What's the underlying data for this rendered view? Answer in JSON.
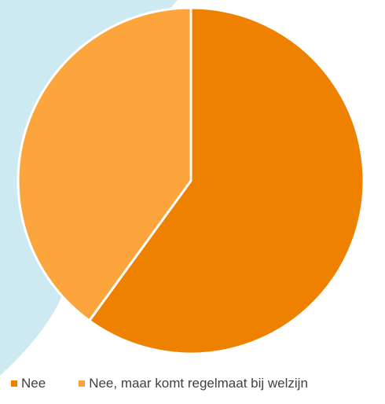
{
  "colors": {
    "background_shape": "#cdeaf3",
    "slice_border": "#ffffff"
  },
  "chart_data": {
    "type": "pie",
    "title": "",
    "start_angle_deg": 0,
    "direction": "clockwise",
    "slices": [
      {
        "label": "Nee",
        "value": 60,
        "color": "#ee8100"
      },
      {
        "label": "Nee, maar komt regelmaat bij welzijn",
        "value": 40,
        "color": "#fba53c"
      }
    ],
    "legend": {
      "position": "bottom",
      "entries": [
        "Nee",
        "Nee, maar komt regelmaat bij welzijn"
      ]
    }
  }
}
